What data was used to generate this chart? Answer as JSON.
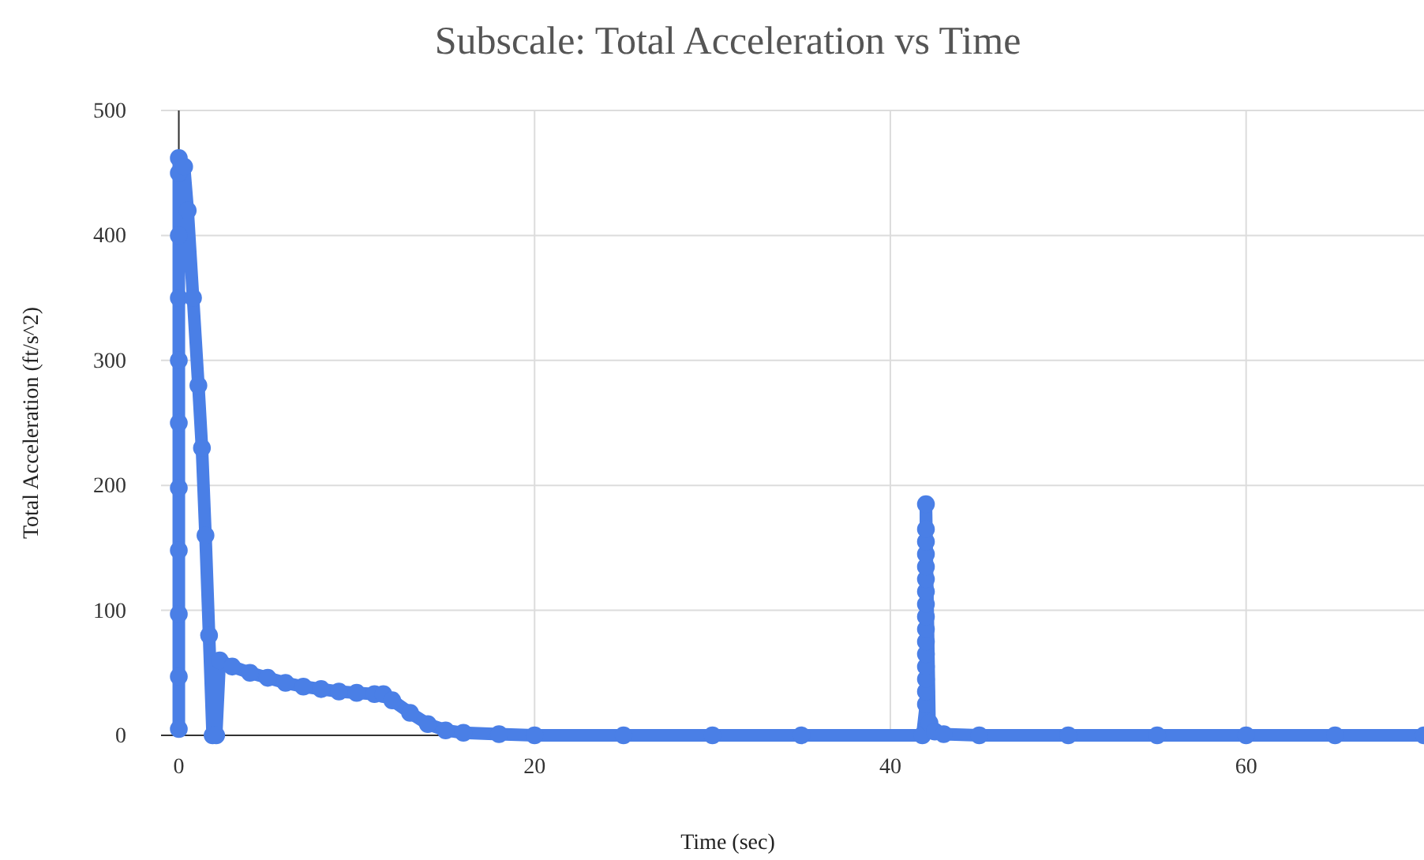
{
  "chart_data": {
    "type": "line",
    "title": "Subscale: Total Acceleration vs Time",
    "xlabel": "Time (sec)",
    "ylabel": "Total Acceleration (ft/s^2)",
    "xlim": [
      -1,
      70
    ],
    "xticks": [
      0,
      20,
      40,
      60
    ],
    "ylim": [
      0,
      500
    ],
    "yticks": [
      0,
      100,
      200,
      300,
      400,
      500
    ],
    "grid": true,
    "marker": "circle",
    "line_style": "solid",
    "series": [
      {
        "color": "#4a7fe6",
        "x": [
          0,
          0,
          0,
          0,
          0,
          0,
          0,
          0,
          0,
          0,
          0,
          0.3,
          0.5,
          0.8,
          1.1,
          1.3,
          1.5,
          1.7,
          1.9,
          2.1,
          2.3,
          3,
          4,
          5,
          6,
          7,
          8,
          9,
          10,
          11,
          11.5,
          12,
          13,
          14,
          15,
          16,
          18,
          20,
          25,
          30,
          35,
          41.8,
          42,
          42,
          42,
          42,
          42,
          42,
          42,
          42,
          42,
          42,
          42,
          42,
          42,
          42,
          42,
          42,
          42.2,
          42.5,
          43,
          45,
          50,
          55,
          60,
          65,
          70
        ],
        "values": [
          5,
          47,
          97,
          148,
          198,
          250,
          300,
          350,
          400,
          450,
          462,
          455,
          420,
          350,
          280,
          230,
          160,
          80,
          0,
          0,
          60,
          55,
          50,
          46,
          42,
          39,
          37,
          35,
          34,
          33,
          33,
          28,
          18,
          9,
          4,
          2,
          1,
          0,
          0,
          0,
          0,
          0,
          25,
          35,
          45,
          55,
          65,
          75,
          85,
          95,
          105,
          115,
          125,
          135,
          145,
          155,
          165,
          185,
          10,
          3,
          1,
          0,
          0,
          0,
          0,
          0,
          0
        ]
      }
    ]
  }
}
